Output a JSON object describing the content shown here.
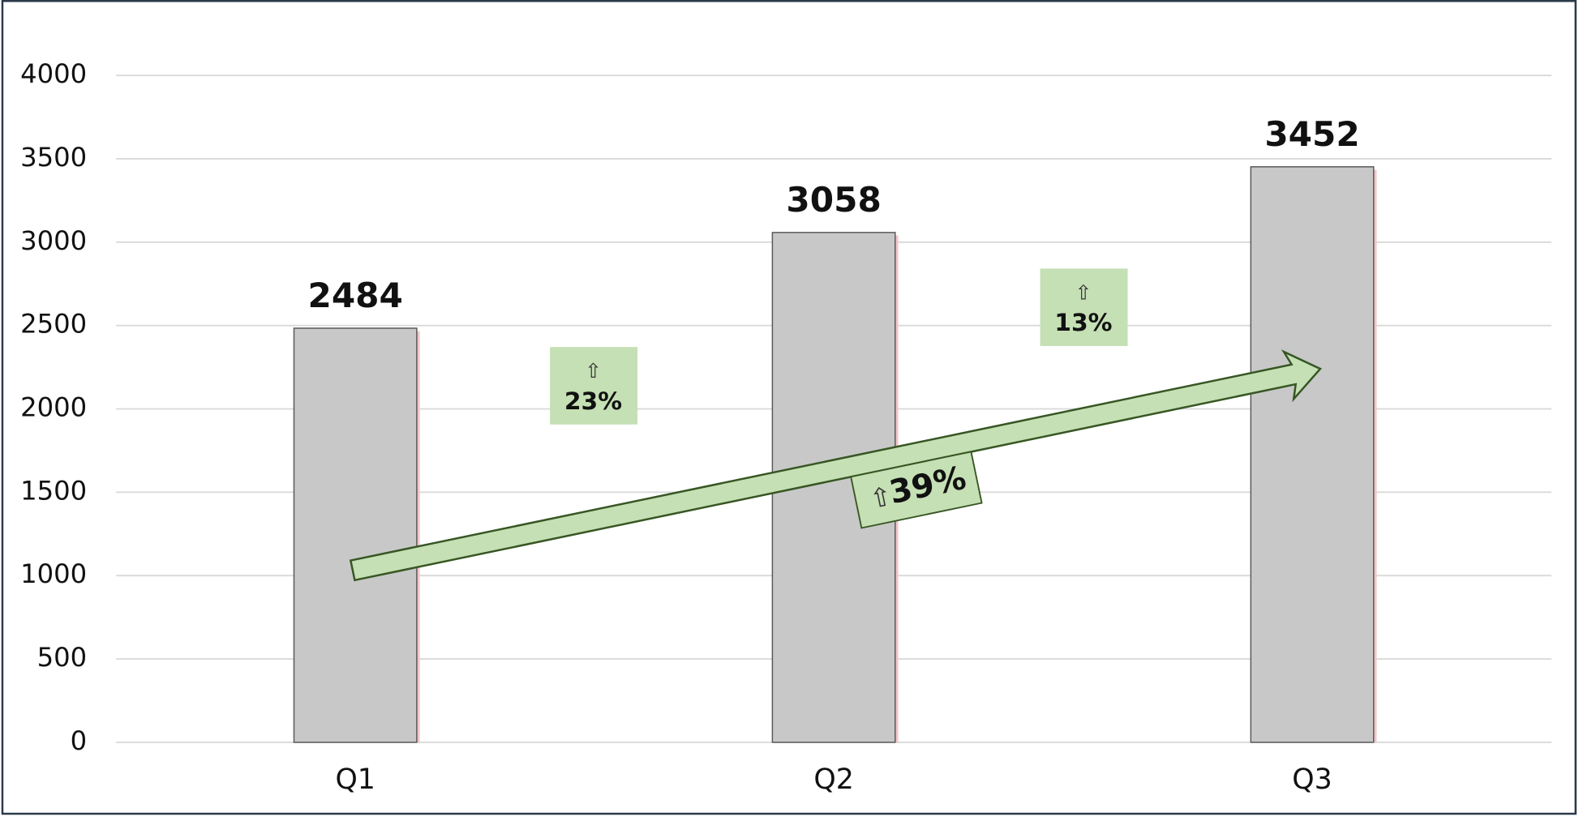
{
  "chart_data": {
    "type": "bar",
    "categories": [
      "Q1",
      "Q2",
      "Q3"
    ],
    "values": [
      2484,
      3058,
      3452
    ],
    "color": "#c8c8c8",
    "ylim": [
      0,
      4000
    ],
    "yticks": [
      0,
      500,
      1000,
      1500,
      2000,
      2500,
      3000,
      3500,
      4000
    ],
    "grid": true,
    "annotations": [
      {
        "arrow": "⇧",
        "text": "23%"
      },
      {
        "arrow": "⇧",
        "text": "13%"
      },
      {
        "arrow": "⇧",
        "text": "39%"
      }
    ]
  }
}
